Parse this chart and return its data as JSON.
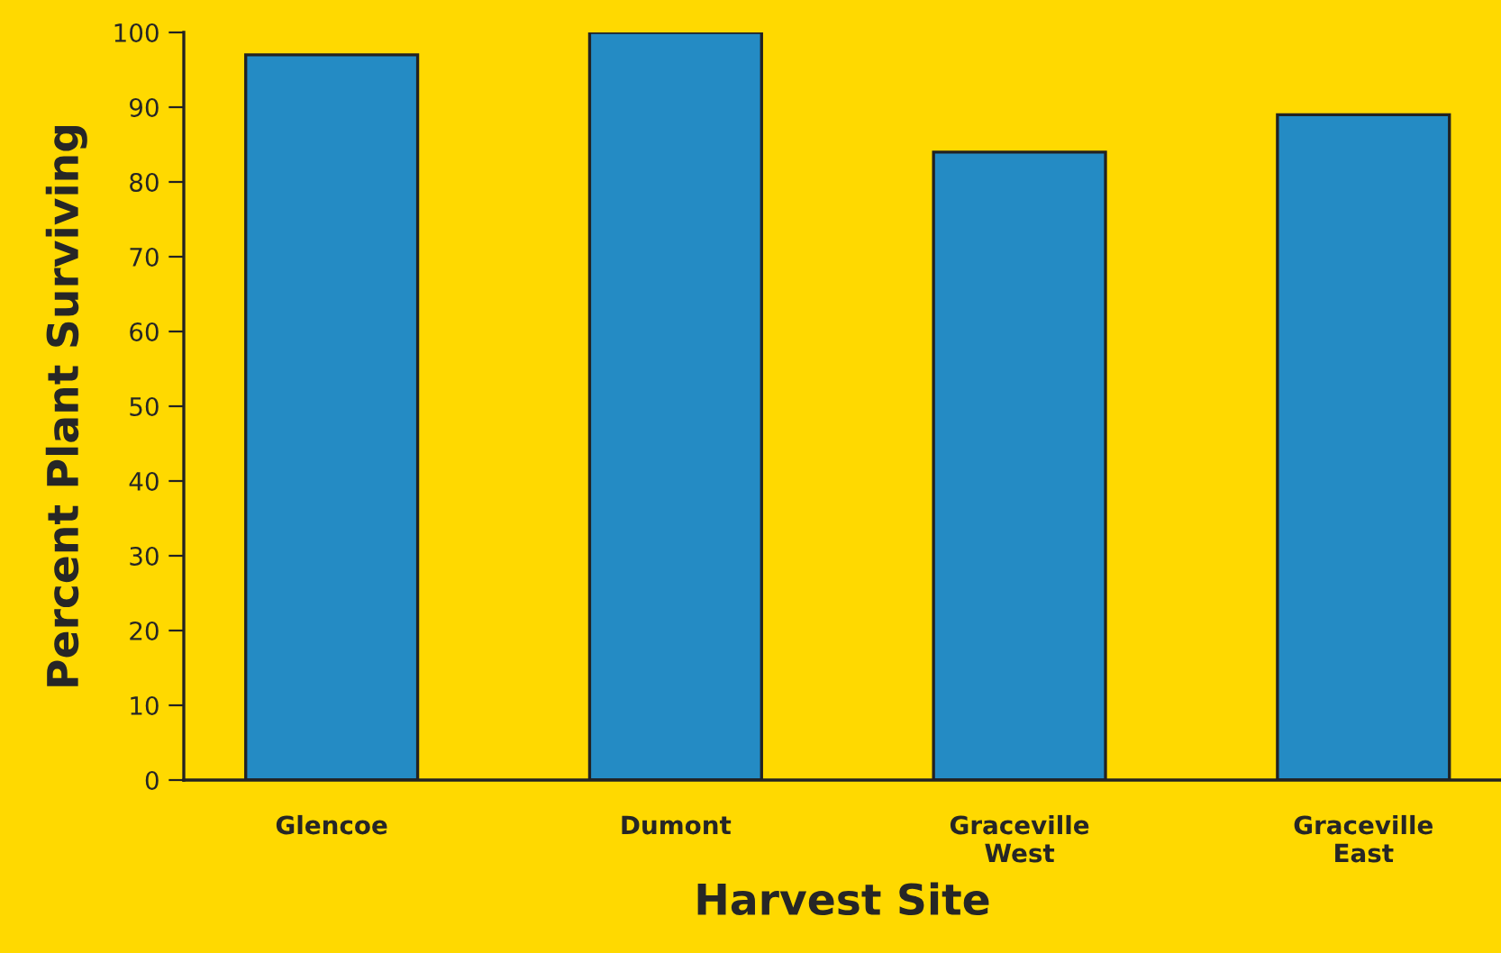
{
  "chart_data": {
    "type": "bar",
    "xlabel": "Harvest Site",
    "ylabel": "Percent Plant Surviving",
    "categories": [
      "Glencoe",
      "Dumont",
      "Graceville\nWest",
      "Graceville\nEast"
    ],
    "values": [
      97,
      100,
      84,
      89
    ],
    "color": "#248bc4",
    "ylim": [
      0,
      100
    ],
    "yticks": [
      0,
      10,
      20,
      30,
      40,
      50,
      60,
      70,
      80,
      90,
      100
    ],
    "grid": false,
    "legend": false
  }
}
